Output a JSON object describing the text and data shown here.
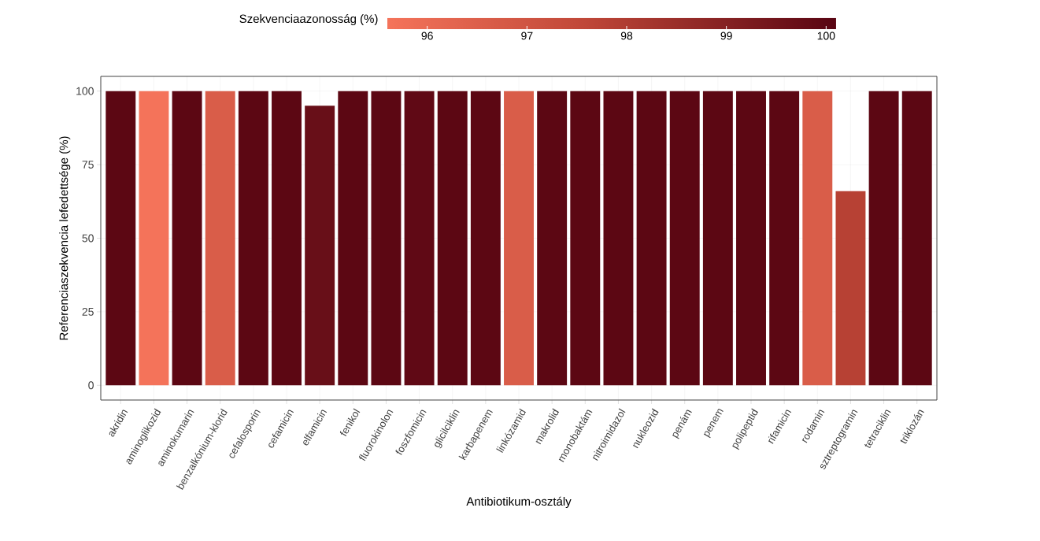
{
  "chart_data": {
    "type": "bar",
    "xlabel": "Antibiotikum-osztály",
    "ylabel": "Referenciaszekvencia lefedettsége (%)",
    "clabel": "Szekvenciaazonosság (%)",
    "categories": [
      "akridin",
      "aminoglikozid",
      "aminokumarin",
      "benzalkónium-klorid",
      "cefalosporin",
      "cefamicin",
      "elfamicin",
      "fenikol",
      "fluorokinolon",
      "foszfomicin",
      "glicilciklin",
      "karbapenem",
      "linkózamid",
      "makrolid",
      "monobaktám",
      "nitroimidazol",
      "nukleozid",
      "penám",
      "penem",
      "polipeptid",
      "rifamicin",
      "rodamin",
      "sztreptogramin",
      "tetraciklin",
      "triklozán"
    ],
    "values": [
      100,
      100,
      100,
      100,
      100,
      100,
      95,
      100,
      100,
      100,
      100,
      100,
      100,
      100,
      100,
      100,
      100,
      100,
      100,
      100,
      100,
      100,
      66,
      100,
      100
    ],
    "cvalues": [
      100,
      95.6,
      100,
      96.6,
      100,
      100,
      99.7,
      100,
      100,
      99.9,
      100,
      100,
      96.6,
      100,
      100,
      100,
      100,
      100,
      100,
      100,
      100,
      96.6,
      97.8,
      100,
      100
    ],
    "clim": [
      95.6,
      100.1
    ],
    "cticks": [
      96,
      97,
      98,
      99,
      100
    ],
    "ylim": [
      -5,
      105
    ],
    "yticks": [
      0,
      25,
      50,
      75,
      100
    ],
    "grid": true
  }
}
